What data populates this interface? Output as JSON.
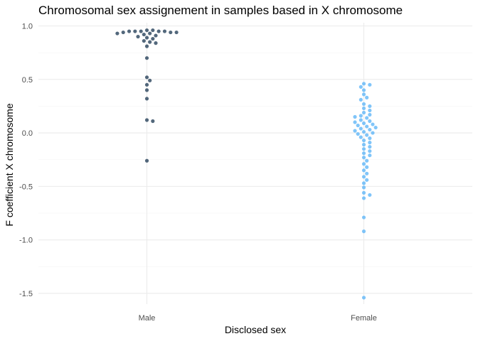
{
  "chart_data": {
    "type": "scatter",
    "title": "Chromosomal sex assignement in samples based in X chromosome",
    "xlabel": "Disclosed sex",
    "ylabel": "F coefficient X chromosome",
    "categories": [
      "Male",
      "Female"
    ],
    "ylim": [
      -1.6,
      1.03
    ],
    "yticks": [
      1.0,
      0.5,
      0.0,
      -0.5,
      -1.0,
      -1.5
    ],
    "ytick_labels": [
      "1.0",
      "0.5",
      "0.0",
      "-0.5",
      "-1.0",
      "-1.5"
    ],
    "grid": true,
    "legend": "none",
    "series": [
      {
        "category": "Male",
        "color": "#1a3650",
        "opacity": 0.75,
        "values": [
          0.96,
          0.96,
          0.95,
          0.95,
          0.95,
          0.95,
          0.95,
          0.94,
          0.94,
          0.94,
          0.93,
          0.93,
          0.92,
          0.91,
          0.9,
          0.89,
          0.88,
          0.86,
          0.85,
          0.84,
          0.81,
          0.7,
          0.52,
          0.49,
          0.45,
          0.4,
          0.32,
          0.12,
          0.11,
          -0.26
        ]
      },
      {
        "category": "Female",
        "color": "#56b1f7",
        "opacity": 0.75,
        "values": [
          0.46,
          0.45,
          0.43,
          0.4,
          0.36,
          0.33,
          0.31,
          0.27,
          0.25,
          0.23,
          0.21,
          0.19,
          0.17,
          0.16,
          0.15,
          0.14,
          0.12,
          0.11,
          0.1,
          0.09,
          0.08,
          0.07,
          0.06,
          0.05,
          0.04,
          0.03,
          0.02,
          0.01,
          0.0,
          -0.01,
          -0.02,
          -0.04,
          -0.05,
          -0.07,
          -0.09,
          -0.11,
          -0.13,
          -0.15,
          -0.17,
          -0.19,
          -0.21,
          -0.23,
          -0.26,
          -0.29,
          -0.32,
          -0.35,
          -0.38,
          -0.41,
          -0.44,
          -0.47,
          -0.51,
          -0.56,
          -0.58,
          -0.61,
          -0.79,
          -0.92,
          -1.54
        ]
      }
    ]
  }
}
